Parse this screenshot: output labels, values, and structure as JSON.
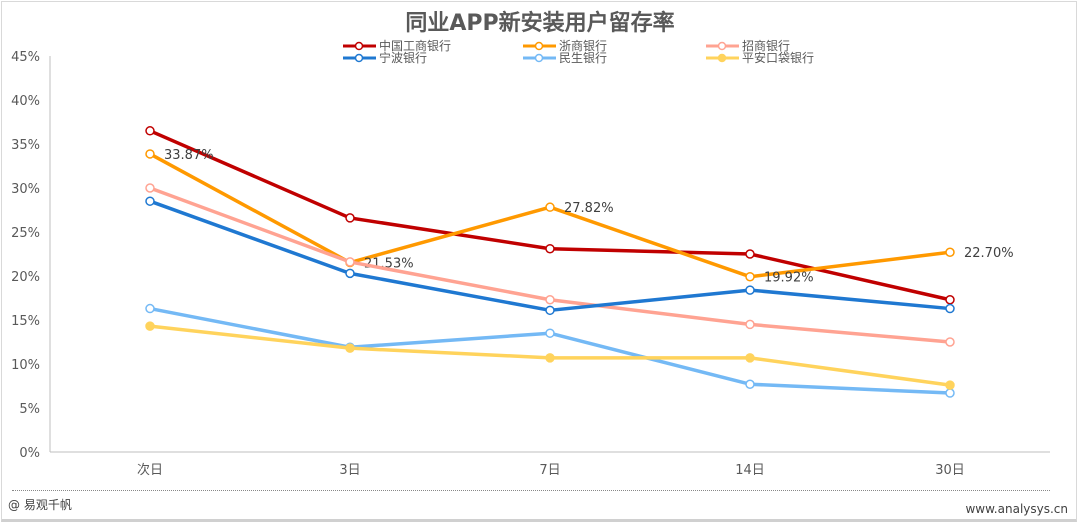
{
  "chart_data": {
    "type": "line",
    "title": "同业APP新安装用户留存率",
    "categories": [
      "次日",
      "3日",
      "7日",
      "14日",
      "30日"
    ],
    "ylim": [
      0,
      45
    ],
    "yticks": [
      "0%",
      "5%",
      "10%",
      "15%",
      "20%",
      "25%",
      "30%",
      "35%",
      "40%",
      "45%"
    ],
    "y_unit": "%",
    "grid": false,
    "legend_position": "top",
    "series": [
      {
        "name": "中国工商银行",
        "color": "#c00000",
        "marker_fill": "#ffffff",
        "values": [
          36.5,
          26.6,
          23.1,
          22.5,
          17.3
        ]
      },
      {
        "name": "浙商银行",
        "color": "#ff9900",
        "marker_fill": "#ffffff",
        "values": [
          33.87,
          21.53,
          27.82,
          19.92,
          22.7
        ],
        "labels": [
          "33.87%",
          "21.53%",
          "27.82%",
          "19.92%",
          "22.70%"
        ]
      },
      {
        "name": "招商银行",
        "color": "#ffa392",
        "marker_fill": "#ffffff",
        "values": [
          30.0,
          21.6,
          17.3,
          14.5,
          12.5
        ]
      },
      {
        "name": "宁波银行",
        "color": "#1f78d1",
        "marker_fill": "#ffffff",
        "values": [
          28.5,
          20.3,
          16.1,
          18.4,
          16.3
        ]
      },
      {
        "name": "民生银行",
        "color": "#74b9f5",
        "marker_fill": "#ffffff",
        "values": [
          16.3,
          11.9,
          13.5,
          7.7,
          6.7
        ]
      },
      {
        "name": "平安口袋银行",
        "color": "#ffd35c",
        "marker_fill": "#ffd35c",
        "values": [
          14.3,
          11.8,
          10.7,
          10.7,
          7.6
        ]
      }
    ]
  },
  "footer": {
    "source": "@ 易观千帆",
    "url": "www.analysys.cn"
  }
}
